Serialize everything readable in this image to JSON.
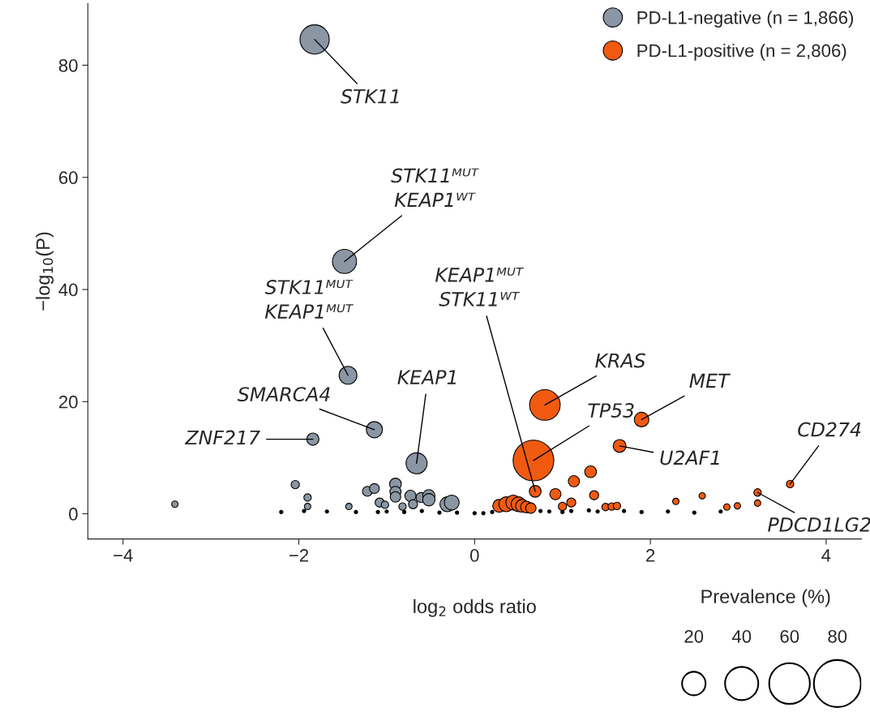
{
  "chart_data": {
    "type": "bubble",
    "xlabel": "log$_{2}$ odds ratio",
    "ylabel": "−log$_{10}$(P)",
    "xlim": [
      -4.4,
      4.4
    ],
    "ylim": [
      -4.5,
      91
    ],
    "xticks": [
      {
        "value": -4,
        "label": "−4"
      },
      {
        "value": -2,
        "label": "−2"
      },
      0,
      2,
      4
    ],
    "yticks": [
      0,
      20,
      40,
      60,
      80
    ],
    "legend": "top right",
    "legend_title": "Prevalence (%)",
    "size_legend": [
      20,
      40,
      60,
      80
    ],
    "series": [
      {
        "name": "PD-L1-negative (n = 1,866)",
        "color": "#8a96a3",
        "x": [
          -1.82,
          -1.48,
          -1.44,
          -1.14,
          -1.84,
          -0.66,
          -3.41,
          -2.04,
          -1.9,
          -1.9,
          -1.43,
          -1.22,
          -1.14,
          -0.9,
          -0.9,
          -0.9,
          -1.08,
          -1.02,
          -0.73,
          -0.61,
          -0.52,
          -0.52,
          -0.31,
          -0.26,
          -0.7,
          -0.82
        ],
        "values": [
          84.6,
          45,
          24.7,
          15,
          13.3,
          9,
          1.7,
          5.2,
          2.9,
          1.3,
          1.3,
          4,
          4.5,
          5.3,
          3.9,
          3,
          2,
          1.6,
          3.2,
          2.9,
          3.2,
          2.5,
          1.7,
          2,
          1.7,
          1.3
        ],
        "sizes": [
          31,
          21,
          11.5,
          9.5,
          5.4,
          16,
          1.5,
          2.5,
          2,
          1.5,
          1.5,
          3.5,
          3.5,
          5,
          4.5,
          4,
          3,
          2,
          4.5,
          3.5,
          5.5,
          5.5,
          8,
          8,
          3,
          2
        ]
      },
      {
        "name": "PD-L1-positive (n = 2,806)",
        "color": "#f05a10",
        "x": [
          0.8,
          0.67,
          1.9,
          1.65,
          3.59,
          3.22,
          3.22,
          0.69,
          0.92,
          1.13,
          1.32,
          1.36,
          1.0,
          1.1,
          1.49,
          1.56,
          1.62,
          2.29,
          2.59,
          2.87,
          2.99,
          0.28,
          0.36,
          0.44,
          0.5,
          0.54,
          0.59,
          0.64
        ],
        "values": [
          19.4,
          9.5,
          16.8,
          12.1,
          5.3,
          3.8,
          1.9,
          4,
          3.5,
          5.8,
          7.5,
          3.3,
          1.3,
          2,
          1.2,
          1.3,
          1.4,
          2.2,
          3.2,
          1.2,
          1.4,
          1.4,
          1.7,
          2,
          1.7,
          1.4,
          1.2,
          1
        ],
        "sizes": [
          34,
          60,
          7.7,
          6,
          2,
          2,
          1.5,
          5,
          4.5,
          4.5,
          5,
          3,
          2.5,
          3,
          2,
          2,
          2,
          1.5,
          1.5,
          1.5,
          1.5,
          6,
          8,
          8,
          8,
          6,
          5,
          4
        ]
      },
      {
        "color": "#000000",
        "x": [
          -2.2,
          -1.94,
          -1.68,
          -1.35,
          -1.1,
          -1.0,
          -0.8,
          -0.6,
          -0.4,
          -0.2,
          0.0,
          0.1,
          0.2,
          0.75,
          0.85,
          1.0,
          1.1,
          1.3,
          1.4,
          1.7,
          1.9,
          2.2,
          2.5,
          2.8
        ],
        "values": [
          0.3,
          0.5,
          0.4,
          0.3,
          0.3,
          0.4,
          0.3,
          0.5,
          0.2,
          0.2,
          0.1,
          0.1,
          0.3,
          0.5,
          0.4,
          0.3,
          0.5,
          0.6,
          0.4,
          0.5,
          0.3,
          0.4,
          0.2,
          0.4
        ],
        "sizes": [
          0.4,
          0.4,
          0.4,
          0.4,
          0.4,
          0.4,
          0.4,
          0.4,
          0.4,
          0.4,
          0.4,
          0.4,
          0.4,
          0.4,
          0.4,
          0.4,
          0.4,
          0.4,
          0.4,
          0.4,
          0.4,
          0.4,
          0.4,
          0.4
        ]
      }
    ],
    "annotations": [
      {
        "text": "STK11",
        "x": -1.82,
        "y": 84.6
      },
      {
        "text": "STK11ᴹᵁᵀ\nKEAP1ᵂᵀ",
        "x": -1.48,
        "y": 45
      },
      {
        "text": "STK11ᴹᵁᵀ\nKEAP1ᴹᵁᵀ",
        "x": -1.44,
        "y": 24.7
      },
      {
        "text": "SMARCA4",
        "x": -1.14,
        "y": 15
      },
      {
        "text": "ZNF217",
        "x": -1.84,
        "y": 13.3
      },
      {
        "text": "KEAP1",
        "x": -0.66,
        "y": 9
      },
      {
        "text": "KEAP1ᴹᵁᵀ\nSTK11ᵂᵀ",
        "x": 0.69,
        "y": 4
      },
      {
        "text": "KRAS",
        "x": 0.8,
        "y": 19.4
      },
      {
        "text": "TP53",
        "x": 0.67,
        "y": 9.5
      },
      {
        "text": "MET",
        "x": 1.9,
        "y": 16.8
      },
      {
        "text": "U2AF1",
        "x": 1.65,
        "y": 12.1
      },
      {
        "text": "CD274",
        "x": 3.59,
        "y": 5.3
      },
      {
        "text": "PDCD1LG2",
        "x": 3.22,
        "y": 3.8
      }
    ]
  }
}
